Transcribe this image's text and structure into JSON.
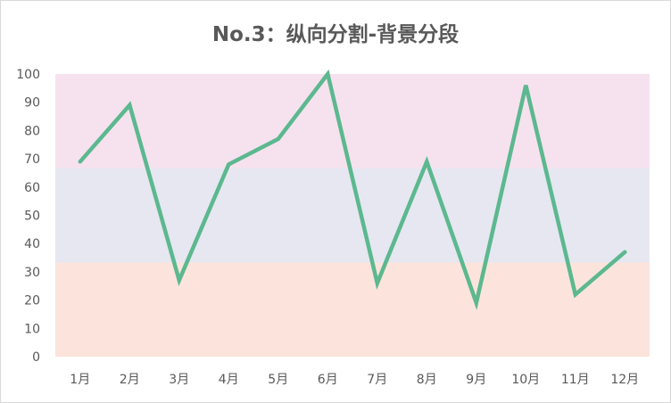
{
  "chart_data": {
    "type": "line",
    "title": "No.3：纵向分割-背景分段",
    "categories": [
      "1月",
      "2月",
      "3月",
      "4月",
      "5月",
      "6月",
      "7月",
      "8月",
      "9月",
      "10月",
      "11月",
      "12月"
    ],
    "series": [
      {
        "values": [
          69,
          89,
          27,
          68,
          77,
          100,
          26,
          69,
          19,
          96,
          22,
          37
        ]
      }
    ],
    "ylim": [
      0,
      100
    ],
    "yticks": [
      0,
      10,
      20,
      30,
      40,
      50,
      60,
      70,
      80,
      90,
      100
    ],
    "background_bands": [
      {
        "from": 0,
        "to": 33.3,
        "color": "#fce4dc"
      },
      {
        "from": 33.3,
        "to": 66.7,
        "color": "#e6e7f1"
      },
      {
        "from": 66.7,
        "to": 100,
        "color": "#f6e2ee"
      }
    ],
    "line_color": "#5cb88f",
    "grid": false,
    "legend": "none"
  }
}
